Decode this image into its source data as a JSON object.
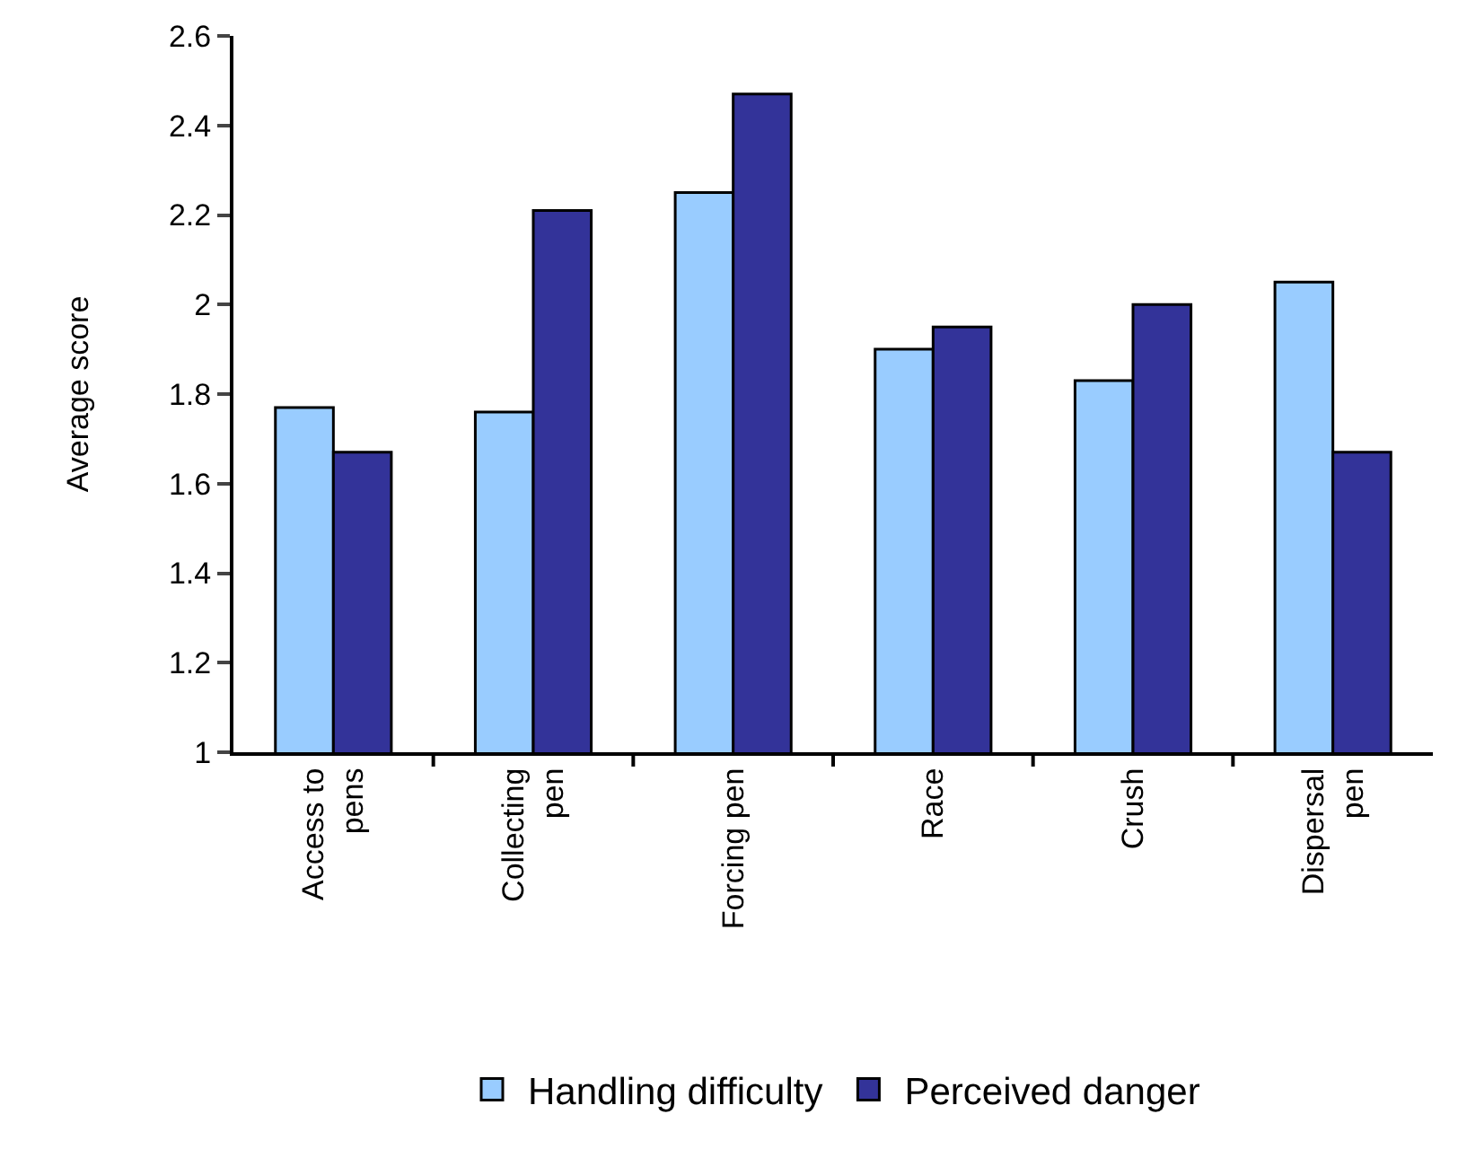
{
  "chart_data": {
    "type": "bar",
    "ylabel": "Average score",
    "categories": [
      "Access to\npens",
      "Collecting\npen",
      "Forcing pen",
      "Race",
      "Crush",
      "Dispersal\npen"
    ],
    "series": [
      {
        "name": "Handling difficulty",
        "color": "#99ccff",
        "values": [
          1.77,
          1.76,
          2.25,
          1.9,
          1.83,
          2.05
        ]
      },
      {
        "name": "Perceived danger",
        "color": "#333399",
        "values": [
          1.67,
          2.21,
          2.47,
          1.95,
          2.0,
          1.67
        ]
      }
    ],
    "ylim": [
      1,
      2.6
    ],
    "yticks": [
      1,
      1.2,
      1.4,
      1.6,
      1.8,
      2,
      2.2,
      2.4,
      2.6
    ],
    "grid": false,
    "legend": "bottom"
  }
}
